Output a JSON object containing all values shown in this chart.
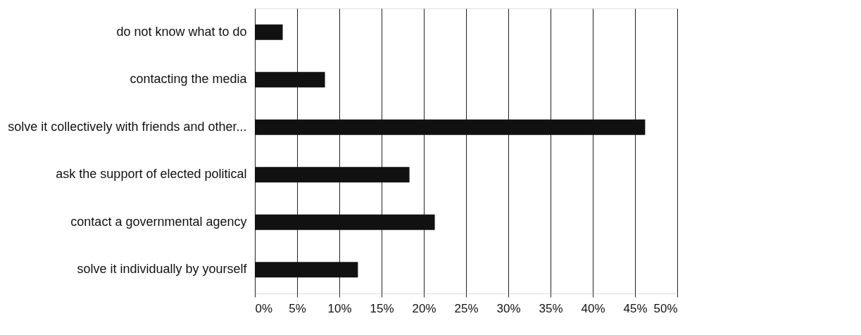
{
  "chart_data": {
    "type": "bar",
    "orientation": "horizontal",
    "categories": [
      "do not know what to do",
      "contacting the media",
      "solve it collectively with friends and other...",
      "ask the support of elected political",
      "contact a governmental agency",
      "solve it individually by yourself"
    ],
    "values": [
      3.3,
      8.3,
      46.2,
      18.3,
      21.3,
      12.2
    ],
    "color": "#111111",
    "xlim": [
      0,
      50
    ],
    "xticks": [
      {
        "value": 0,
        "label": "0%"
      },
      {
        "value": 5,
        "label": "5%"
      },
      {
        "value": 10,
        "label": "10%"
      },
      {
        "value": 15,
        "label": "15%"
      },
      {
        "value": 20,
        "label": "20%"
      },
      {
        "value": 25,
        "label": "25%"
      },
      {
        "value": 30,
        "label": "30%"
      },
      {
        "value": 35,
        "label": "35%"
      },
      {
        "value": 40,
        "label": "40%"
      },
      {
        "value": 45,
        "label": "45%"
      },
      {
        "value": 50,
        "label": "50%"
      }
    ],
    "grid": "x"
  }
}
